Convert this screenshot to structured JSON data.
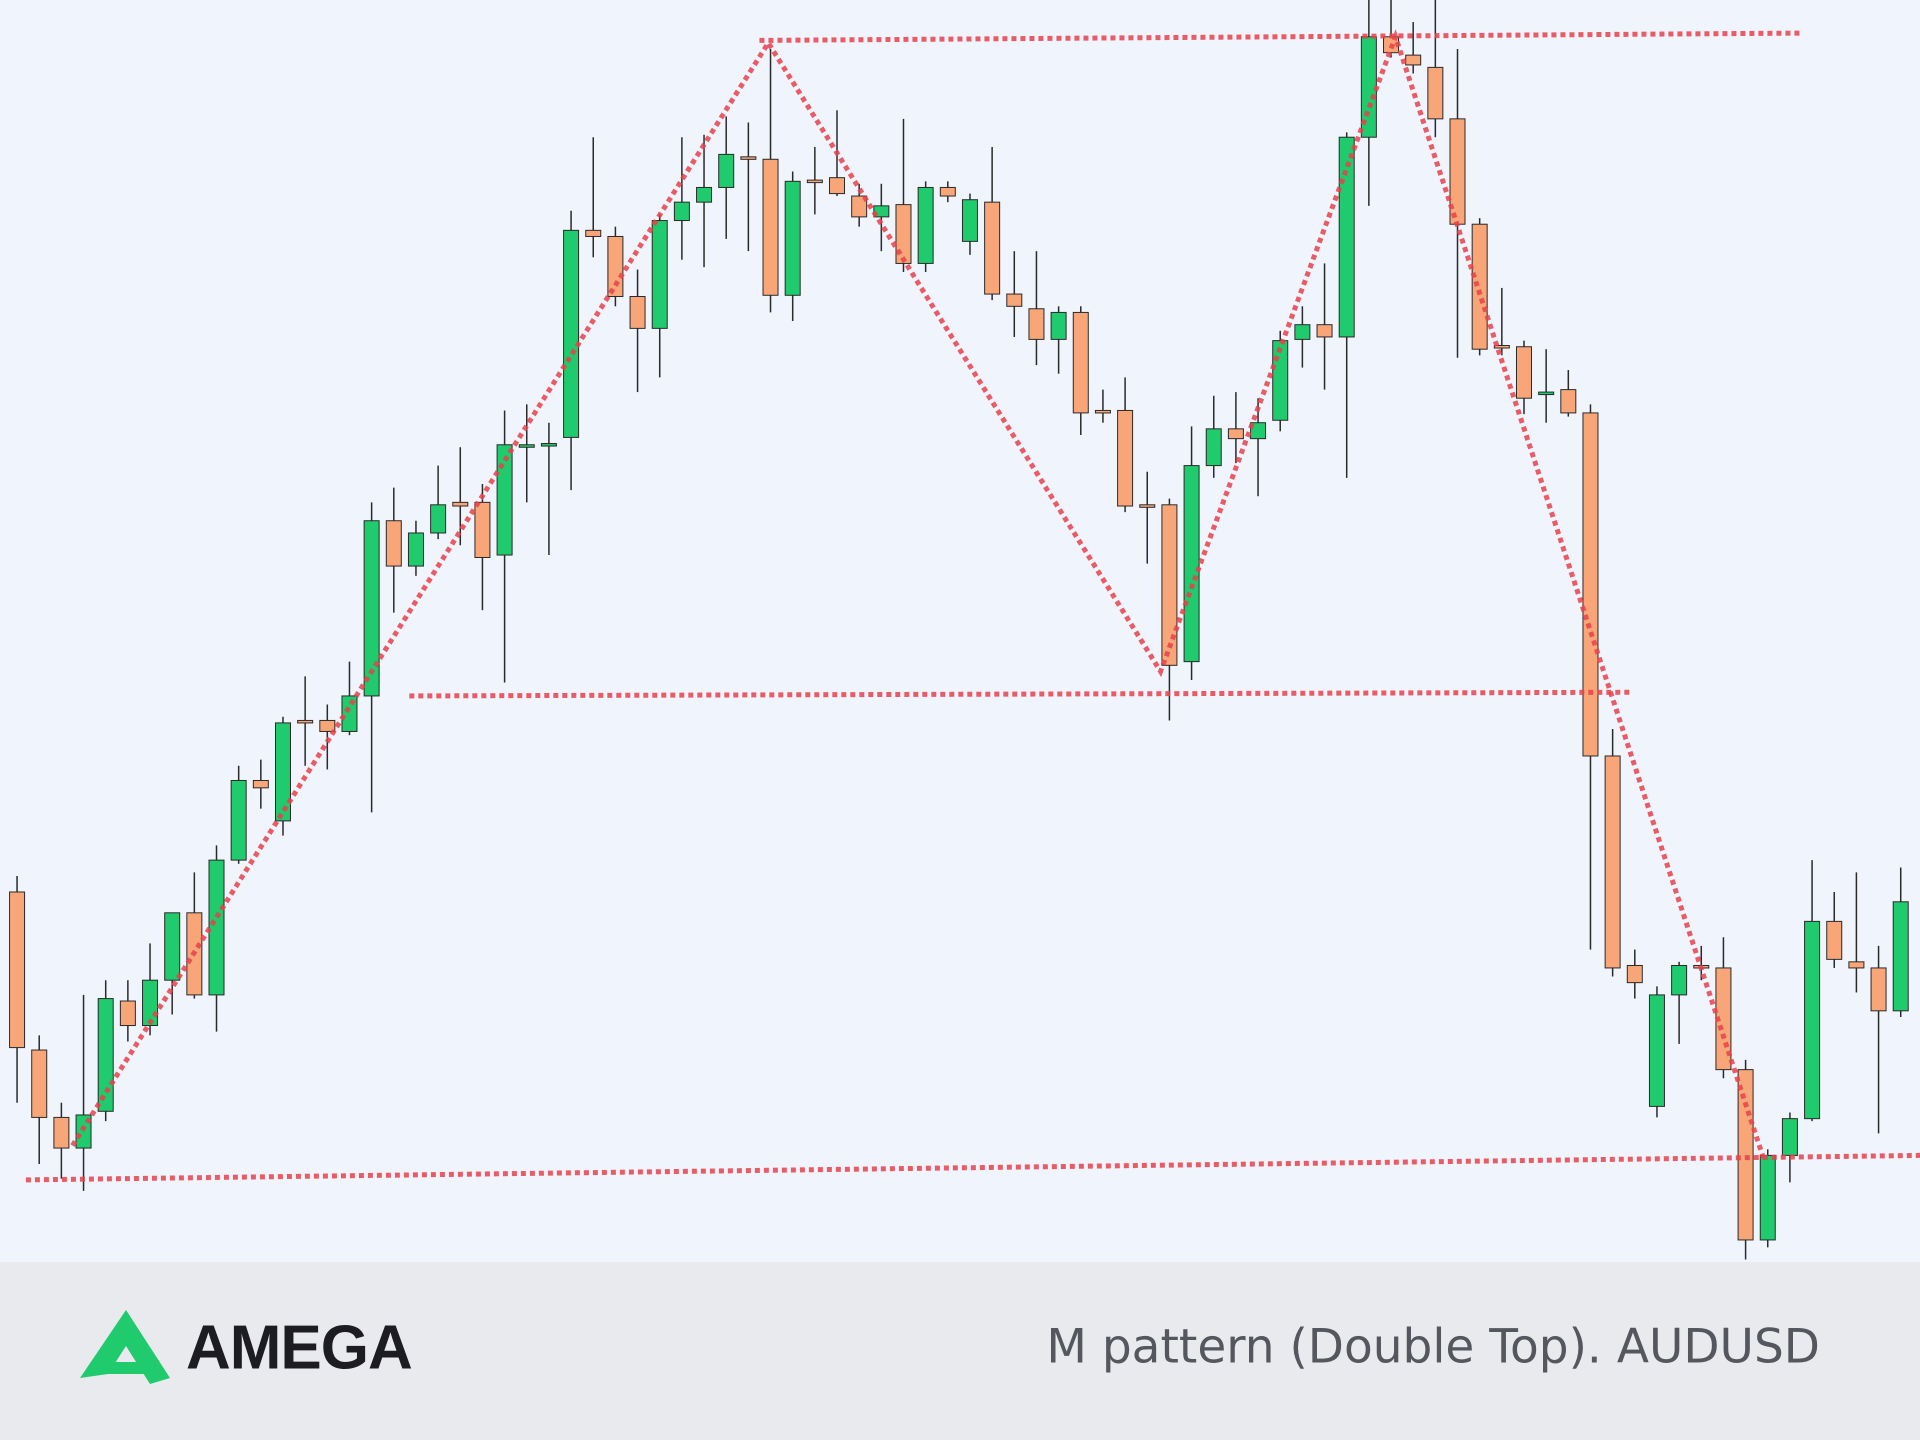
{
  "chart_data": {
    "type": "candlestick",
    "title": "M pattern (Double Top). AUDUSD",
    "open": [
      302,
      173,
      118,
      93,
      123,
      213,
      193,
      230,
      285,
      218,
      328,
      393,
      360,
      442,
      442,
      433,
      462,
      605,
      568,
      595,
      620,
      620,
      577,
      667,
      668,
      673,
      842,
      837,
      788,
      762,
      850,
      865,
      877,
      902,
      900,
      789,
      883,
      885,
      870,
      853,
      863,
      815,
      877,
      833,
      865,
      790,
      778,
      753,
      775,
      695,
      695,
      618,
      618,
      490,
      650,
      680,
      672,
      687,
      753,
      765,
      755,
      918,
      1000,
      985,
      975,
      933,
      847,
      748,
      747,
      708,
      712,
      693,
      413,
      242,
      127,
      218,
      242,
      240,
      157,
      18,
      87,
      117,
      278,
      245,
      240,
      205
    ],
    "high": [
      315,
      185,
      130,
      218,
      230,
      230,
      260,
      285,
      318,
      340,
      405,
      410,
      445,
      478,
      455,
      490,
      620,
      632,
      605,
      650,
      665,
      635,
      695,
      700,
      685,
      858,
      918,
      845,
      810,
      855,
      918,
      920,
      935,
      930,
      990,
      890,
      910,
      940,
      880,
      880,
      933,
      882,
      882,
      872,
      910,
      825,
      825,
      780,
      780,
      712,
      722,
      645,
      623,
      682,
      707,
      710,
      705,
      760,
      780,
      815,
      922,
      1030,
      1030,
      1012,
      1030,
      990,
      852,
      795,
      752,
      745,
      728,
      700,
      435,
      255,
      225,
      245,
      258,
      265,
      165,
      92,
      122,
      328,
      302,
      318,
      258,
      322
    ],
    "low": [
      130,
      80,
      68,
      58,
      115,
      180,
      185,
      202,
      215,
      188,
      325,
      370,
      348,
      405,
      402,
      430,
      367,
      530,
      560,
      590,
      585,
      532,
      473,
      620,
      577,
      630,
      820,
      780,
      710,
      722,
      818,
      812,
      835,
      825,
      775,
      768,
      855,
      870,
      845,
      825,
      808,
      808,
      865,
      822,
      785,
      755,
      732,
      725,
      675,
      685,
      612,
      570,
      442,
      475,
      640,
      652,
      625,
      678,
      730,
      712,
      640,
      862,
      983,
      970,
      918,
      738,
      740,
      740,
      692,
      685,
      690,
      255,
      233,
      215,
      118,
      178,
      230,
      150,
      2,
      12,
      65,
      115,
      240,
      220,
      105,
      200
    ],
    "close": [
      175,
      118,
      93,
      120,
      215,
      193,
      230,
      285,
      218,
      328,
      393,
      387,
      440,
      440,
      433,
      462,
      605,
      568,
      595,
      618,
      617,
      575,
      667,
      667,
      668,
      842,
      837,
      788,
      762,
      850,
      865,
      877,
      904,
      901,
      789,
      882,
      882,
      872,
      853,
      862,
      815,
      877,
      870,
      867,
      790,
      780,
      753,
      775,
      693,
      694,
      617,
      617,
      487,
      650,
      680,
      672,
      685,
      752,
      765,
      755,
      918,
      1000,
      987,
      977,
      933,
      847,
      745,
      747,
      705,
      710,
      693,
      413,
      240,
      228,
      218,
      242,
      240,
      157,
      18,
      87,
      117,
      278,
      247,
      240,
      205,
      294
    ],
    "up_color": "#1fcb6c",
    "down_color": "#f8a677",
    "xlim": [
      -0.77,
      85.87
    ],
    "ylim": [
      0,
      1030
    ],
    "line_color": "#e8414a",
    "lines": [
      {
        "x": [
          2.5,
          33.9,
          51.6,
          62.2,
          78.8
        ],
        "y": [
          95,
          995,
          482,
          1000,
          85
        ]
      },
      {
        "x": [
          33.5,
          80.6
        ],
        "y": [
          997,
          1003
        ]
      },
      {
        "x": [
          17.7,
          72.9
        ],
        "y": [
          462,
          465
        ]
      },
      {
        "x": [
          0.4,
          85.9
        ],
        "y": [
          67,
          87
        ]
      }
    ]
  },
  "logo_text": "AMEGA"
}
